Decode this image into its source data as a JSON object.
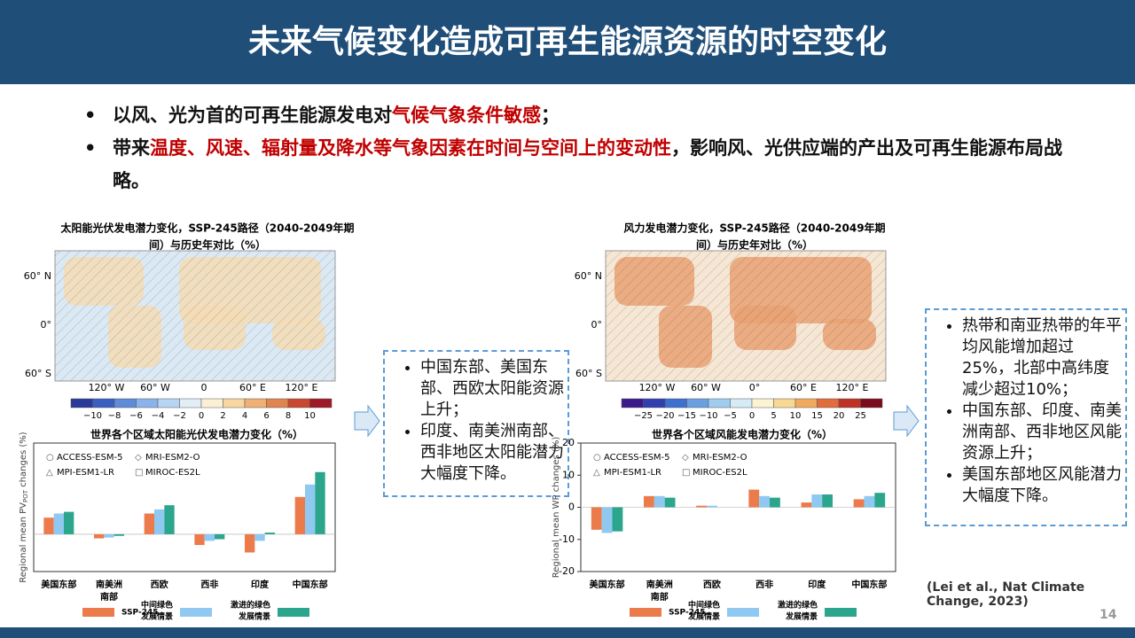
{
  "header": {
    "title": "未来气候变化造成可再生能源资源的时空变化"
  },
  "bullets": [
    [
      {
        "text": "以风、光为首的可再生能源发电对"
      },
      {
        "text": "气候气象条件敏感",
        "red": true
      },
      {
        "text": "；"
      }
    ],
    [
      {
        "text": "带来"
      },
      {
        "text": "温度、风速、辐射量及降水等气象因素在时间与空间上的变动性",
        "red": true
      },
      {
        "text": "，影响风、光供应端的产出及可再生能源布局战略。"
      }
    ]
  ],
  "maps": [
    {
      "title": [
        "太阳能光伏发电潜力变化，SSP-245路径（2040-2049年期",
        "间）与历史年对比（%）"
      ],
      "lat_labels": [
        "60° N",
        "0°",
        "60° S"
      ],
      "lon_labels": [
        "120° W",
        "60° W",
        "0",
        "60° E",
        "120° E"
      ],
      "colorbar": [
        "−10",
        "−8",
        "−6",
        "−4",
        "−2",
        "0",
        "2",
        "4",
        "6",
        "8",
        "10"
      ]
    },
    {
      "title": [
        "风力发电潜力变化，SSP-245路径（2040-2049年期",
        "间）与历史年对比（%）"
      ],
      "lat_labels": [
        "60° N",
        "0°",
        "60° S"
      ],
      "lon_labels": [
        "120° W",
        "60° W",
        "0°",
        "60° E",
        "120° E"
      ],
      "colorbar": [
        "−25",
        "−20",
        "−15",
        "−10",
        "−5",
        "0",
        "5",
        "10",
        "15",
        "20",
        "25"
      ]
    }
  ],
  "charts": [
    {
      "type": "bar",
      "title": "世界各个区域太阳能光伏发电潜力变化（%）",
      "y_label": [
        "Regional mean PV",
        "POT",
        " changes (%)"
      ],
      "models": [
        "ACCESS-ESM-5",
        "MRI-ESM2-O",
        "MPI-ESM1-LR",
        "MIROC-ES2L"
      ],
      "categories": [
        [
          "美国东部"
        ],
        [
          "南美洲",
          "南部"
        ],
        [
          "西欧"
        ],
        [
          "西非"
        ],
        [
          "印度"
        ],
        [
          "中国东部"
        ]
      ],
      "ylim": [
        -4.5,
        11
      ],
      "series": [
        {
          "name": [
            "SSP-245"
          ],
          "color": "#ec7b4c",
          "values": [
            2,
            -0.5,
            2.5,
            -1.3,
            -2.2,
            4.5
          ]
        },
        {
          "name": [
            "中间绿色",
            "发展情景"
          ],
          "color": "#8fc9f2",
          "values": [
            2.5,
            -0.4,
            3,
            -0.8,
            -0.8,
            6
          ]
        },
        {
          "name": [
            "激进的绿色",
            "发展情景"
          ],
          "color": "#2ca58d",
          "values": [
            2.7,
            -0.2,
            3.5,
            -0.6,
            0.2,
            7.5
          ]
        }
      ]
    },
    {
      "type": "bar",
      "title": "世界各个区域风能发电潜力变化（%）",
      "y_label": [
        "Regional mean WP changes (%)"
      ],
      "models": [
        "ACCESS-ESM-5",
        "MRI-ESM2-O",
        "MPI-ESM1-LR",
        "MIROC-ES2L"
      ],
      "categories": [
        [
          "美国东部"
        ],
        [
          "南美洲",
          "南部"
        ],
        [
          "西欧"
        ],
        [
          "西非"
        ],
        [
          "印度"
        ],
        [
          "中国东部"
        ]
      ],
      "ylim": [
        -20,
        20
      ],
      "yticks": [
        -20,
        -10,
        0,
        10,
        20
      ],
      "series": [
        {
          "name": [
            "SSP-245"
          ],
          "color": "#ec7b4c",
          "values": [
            -7,
            3.5,
            0.5,
            5.5,
            1.5,
            2.5
          ]
        },
        {
          "name": [
            "中间绿色",
            "发展情景"
          ],
          "color": "#8fc9f2",
          "values": [
            -8,
            3.5,
            0.5,
            3.5,
            4,
            3.5
          ]
        },
        {
          "name": [
            "激进的绿色",
            "发展情景"
          ],
          "color": "#2ca58d",
          "values": [
            -7.5,
            3,
            0,
            3,
            4,
            4.5
          ]
        }
      ]
    }
  ],
  "boxes": [
    [
      "中国东部、美国东部、西欧太阳能资源上升；",
      "印度、南美洲南部、西非地区太阳能潜力大幅度下降。"
    ],
    [
      "热带和南亚热带的年平均风能增加超过25%，北部中高纬度减少超过10%；",
      "中国东部、印度、南美洲南部、西非地区风能资源上升；",
      "美国东部地区风能潜力大幅度下降。"
    ]
  ],
  "citation": "(Lei et al., Nat Climate Change, 2023)",
  "page": "14"
}
